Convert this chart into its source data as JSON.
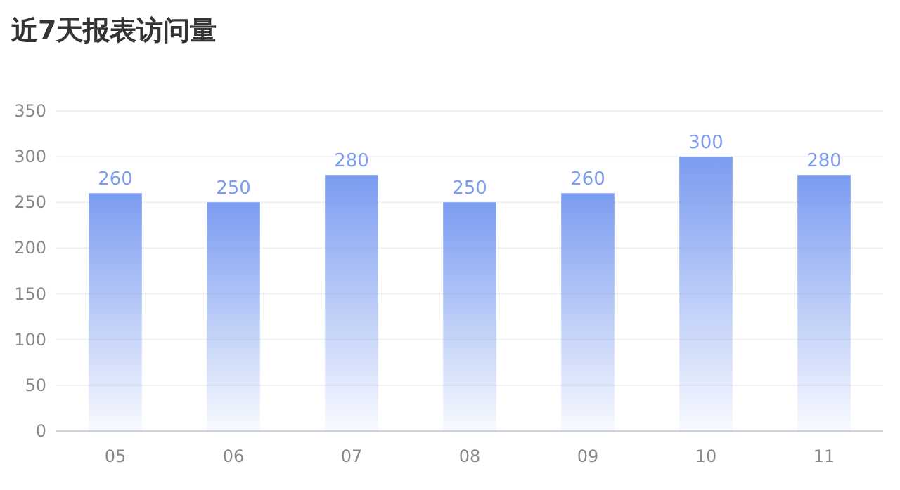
{
  "chart_data": {
    "type": "bar",
    "title": "近7天报表访问量",
    "categories": [
      "05",
      "06",
      "07",
      "08",
      "09",
      "10",
      "11"
    ],
    "values": [
      260,
      250,
      280,
      250,
      260,
      300,
      280
    ],
    "color": "#7b9cf0",
    "ylim": [
      0,
      350
    ],
    "yticks": [
      0,
      50,
      100,
      150,
      200,
      250,
      300,
      350
    ],
    "grid": "y",
    "data_labels": true
  }
}
